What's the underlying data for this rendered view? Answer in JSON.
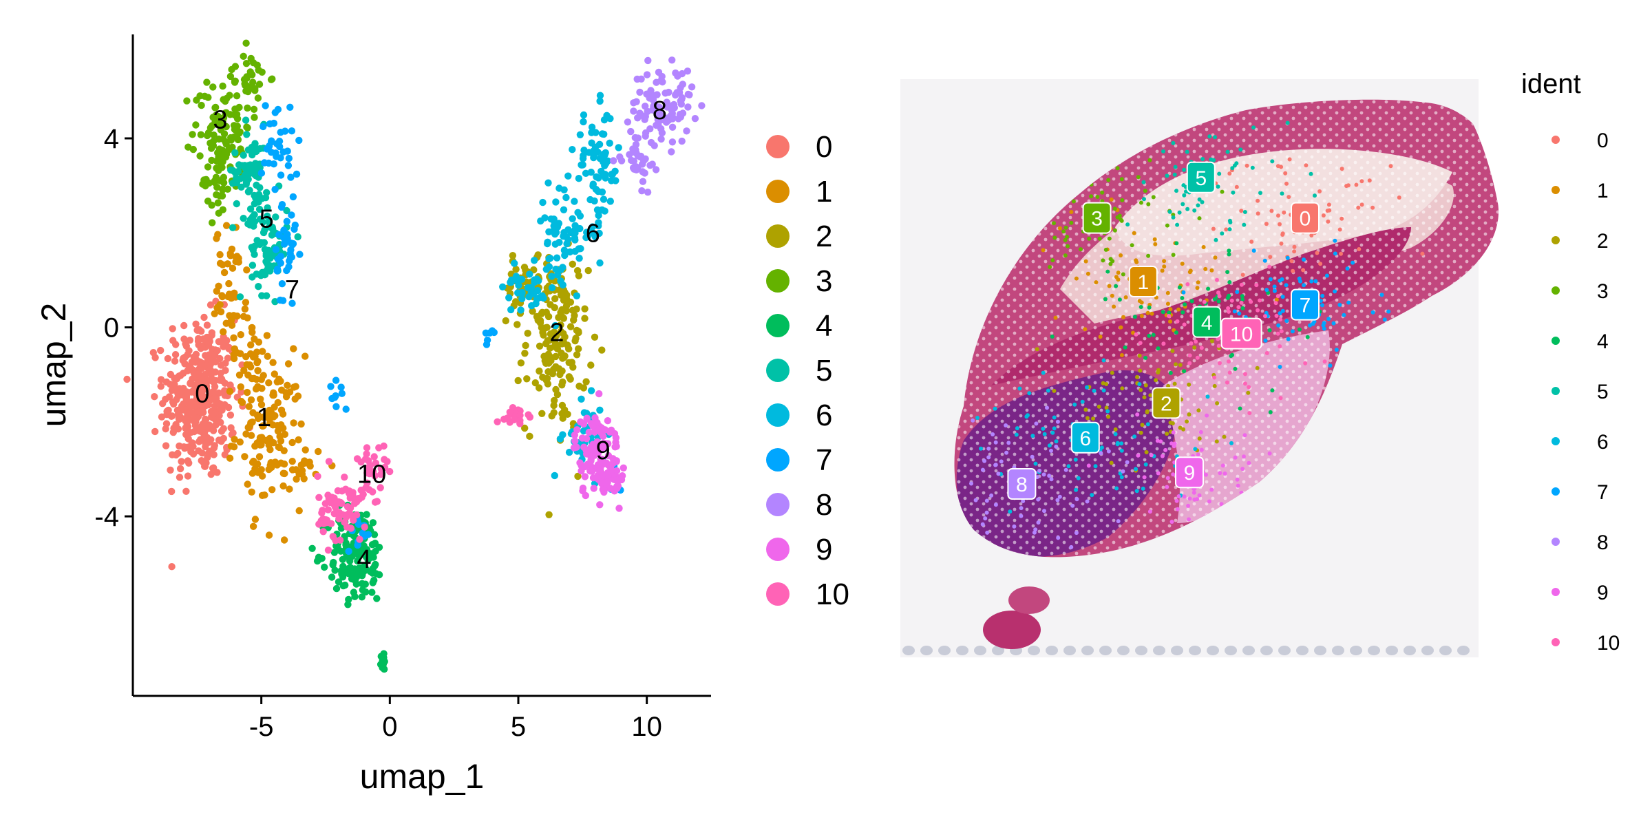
{
  "colors": {
    "0": "#F8766D",
    "1": "#DB8E00",
    "2": "#AEA200",
    "3": "#64B200",
    "4": "#00BD5C",
    "5": "#00C1A7",
    "6": "#00BADE",
    "7": "#00A6FF",
    "8": "#B385FF",
    "9": "#EF67EB",
    "10": "#FF63B6"
  },
  "chart_data": [
    {
      "type": "scatter",
      "xlabel": "umap_1",
      "ylabel": "umap_2",
      "xlim": [
        -10,
        12.5
      ],
      "ylim": [
        -7.8,
        6.2
      ],
      "xticks": [
        -5,
        0,
        5,
        10
      ],
      "yticks": [
        -4,
        0,
        4
      ],
      "xtick_labels": [
        "-5",
        "0",
        "5",
        "10"
      ],
      "ytick_labels": [
        "-4",
        "0",
        "4"
      ],
      "grid": false,
      "legend_placement": "right",
      "legend_entries": [
        "0",
        "1",
        "2",
        "3",
        "4",
        "5",
        "6",
        "7",
        "8",
        "9",
        "10"
      ],
      "cluster_labels": [
        {
          "label": "0",
          "x": -7.3,
          "y": -1.4
        },
        {
          "label": "1",
          "x": -4.9,
          "y": -1.9
        },
        {
          "label": "2",
          "x": 6.5,
          "y": -0.1
        },
        {
          "label": "3",
          "x": -6.6,
          "y": 4.4
        },
        {
          "label": "4",
          "x": -1.0,
          "y": -4.9
        },
        {
          "label": "5",
          "x": -4.8,
          "y": 2.3
        },
        {
          "label": "6",
          "x": 7.9,
          "y": 2.0
        },
        {
          "label": "7",
          "x": -3.8,
          "y": 0.8
        },
        {
          "label": "8",
          "x": 10.5,
          "y": 4.6
        },
        {
          "label": "9",
          "x": 8.3,
          "y": -2.6
        },
        {
          "label": "10",
          "x": -0.7,
          "y": -3.1
        }
      ],
      "clusters": [
        {
          "name": "0",
          "n": 380,
          "regions": [
            {
              "cx": -7.4,
              "cy": -1.5,
              "sx": 0.7,
              "sy": 0.85
            }
          ]
        },
        {
          "name": "1",
          "n": 230,
          "regions": [
            {
              "cx": -4.7,
              "cy": -2.2,
              "sx": 0.65,
              "sy": 0.8
            },
            {
              "cx": -6.2,
              "cy": 0.9,
              "sx": 0.3,
              "sy": 0.6
            },
            {
              "cx": -5.6,
              "cy": -0.6,
              "sx": 0.3,
              "sy": 0.4
            },
            {
              "cx": -3.3,
              "cy": -2.9,
              "sx": 0.35,
              "sy": 0.2
            }
          ]
        },
        {
          "name": "2",
          "n": 200,
          "regions": [
            {
              "cx": 6.5,
              "cy": -0.3,
              "sx": 0.6,
              "sy": 0.95
            },
            {
              "cx": 5.3,
              "cy": 0.8,
              "sx": 0.5,
              "sy": 0.3
            }
          ]
        },
        {
          "name": "3",
          "n": 160,
          "regions": [
            {
              "cx": -6.5,
              "cy": 4.3,
              "sx": 0.55,
              "sy": 0.5
            },
            {
              "cx": -6.7,
              "cy": 3.1,
              "sx": 0.3,
              "sy": 0.4
            },
            {
              "cx": -5.5,
              "cy": 5.3,
              "sx": 0.4,
              "sy": 0.25
            }
          ]
        },
        {
          "name": "4",
          "n": 180,
          "regions": [
            {
              "cx": -1.3,
              "cy": -4.8,
              "sx": 0.55,
              "sy": 0.5
            },
            {
              "cx": -0.3,
              "cy": -7.0,
              "sx": 0.1,
              "sy": 0.15
            }
          ]
        },
        {
          "name": "5",
          "n": 140,
          "regions": [
            {
              "cx": -5.4,
              "cy": 3.3,
              "sx": 0.35,
              "sy": 0.5
            },
            {
              "cx": -4.7,
              "cy": 1.7,
              "sx": 0.35,
              "sy": 0.5
            }
          ]
        },
        {
          "name": "6",
          "n": 220,
          "regions": [
            {
              "cx": 6.8,
              "cy": 2.0,
              "sx": 0.6,
              "sy": 0.5
            },
            {
              "cx": 8.1,
              "cy": 3.4,
              "sx": 0.45,
              "sy": 0.6
            },
            {
              "cx": 5.4,
              "cy": 0.9,
              "sx": 0.5,
              "sy": 0.3
            },
            {
              "cx": 7.6,
              "cy": -2.4,
              "sx": 0.4,
              "sy": 0.4
            }
          ]
        },
        {
          "name": "7",
          "n": 100,
          "regions": [
            {
              "cx": -4.4,
              "cy": 4.0,
              "sx": 0.3,
              "sy": 0.5
            },
            {
              "cx": -4.0,
              "cy": 1.5,
              "sx": 0.25,
              "sy": 0.7
            },
            {
              "cx": -2.0,
              "cy": -1.4,
              "sx": 0.2,
              "sy": 0.2
            },
            {
              "cx": 4.0,
              "cy": -0.1,
              "sx": 0.2,
              "sy": 0.1
            },
            {
              "cx": -1.2,
              "cy": -4.3,
              "sx": 0.25,
              "sy": 0.2
            },
            {
              "cx": 8.7,
              "cy": -3.2,
              "sx": 0.15,
              "sy": 0.2
            }
          ]
        },
        {
          "name": "8",
          "n": 130,
          "regions": [
            {
              "cx": 10.6,
              "cy": 4.7,
              "sx": 0.6,
              "sy": 0.4
            },
            {
              "cx": 9.6,
              "cy": 3.6,
              "sx": 0.3,
              "sy": 0.3
            }
          ]
        },
        {
          "name": "9",
          "n": 140,
          "regions": [
            {
              "cx": 8.1,
              "cy": -2.7,
              "sx": 0.45,
              "sy": 0.45
            },
            {
              "cx": 8.6,
              "cy": -3.3,
              "sx": 0.25,
              "sy": 0.2
            }
          ]
        },
        {
          "name": "10",
          "n": 120,
          "regions": [
            {
              "cx": -1.8,
              "cy": -3.8,
              "sx": 0.5,
              "sy": 0.35
            },
            {
              "cx": 5.0,
              "cy": -1.9,
              "sx": 0.35,
              "sy": 0.12
            },
            {
              "cx": -0.7,
              "cy": -2.9,
              "sx": 0.3,
              "sy": 0.2
            }
          ]
        }
      ]
    },
    {
      "type": "scatter",
      "legend_title": "ident",
      "legend_entries": [
        "0",
        "1",
        "2",
        "3",
        "4",
        "5",
        "6",
        "7",
        "8",
        "9",
        "10"
      ],
      "legend_placement": "right",
      "grid": false,
      "cluster_labels": [
        {
          "label": "0",
          "x": 0.7,
          "y": 0.24
        },
        {
          "label": "1",
          "x": 0.42,
          "y": 0.35
        },
        {
          "label": "2",
          "x": 0.46,
          "y": 0.56
        },
        {
          "label": "3",
          "x": 0.34,
          "y": 0.24
        },
        {
          "label": "4",
          "x": 0.53,
          "y": 0.42
        },
        {
          "label": "5",
          "x": 0.52,
          "y": 0.17
        },
        {
          "label": "6",
          "x": 0.32,
          "y": 0.62
        },
        {
          "label": "7",
          "x": 0.7,
          "y": 0.39
        },
        {
          "label": "8",
          "x": 0.21,
          "y": 0.7
        },
        {
          "label": "9",
          "x": 0.5,
          "y": 0.68
        },
        {
          "label": "10",
          "x": 0.59,
          "y": 0.44
        }
      ]
    }
  ]
}
